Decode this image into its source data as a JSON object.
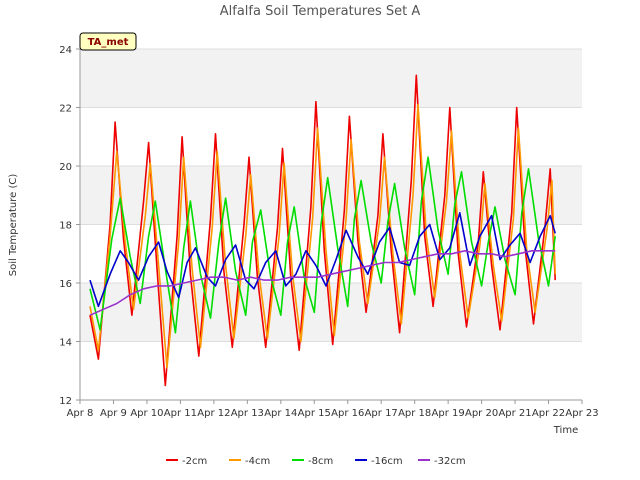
{
  "chart_data": {
    "type": "line",
    "title": "Alfalfa Soil Temperatures Set A",
    "xlabel": "Time",
    "ylabel": "Soil Temperature (C)",
    "badge": "TA_met",
    "xlim": [
      8,
      23
    ],
    "ylim": [
      12,
      24
    ],
    "yticks": [
      12,
      14,
      16,
      18,
      20,
      22,
      24
    ],
    "xticks": [
      {
        "x": 8,
        "label": "Apr 8"
      },
      {
        "x": 9,
        "label": "Apr 9"
      },
      {
        "x": 10,
        "label": "Apr 10"
      },
      {
        "x": 11,
        "label": "Apr 11"
      },
      {
        "x": 12,
        "label": "Apr 12"
      },
      {
        "x": 13,
        "label": "Apr 13"
      },
      {
        "x": 14,
        "label": "Apr 14"
      },
      {
        "x": 15,
        "label": "Apr 15"
      },
      {
        "x": 16,
        "label": "Apr 16"
      },
      {
        "x": 17,
        "label": "Apr 17"
      },
      {
        "x": 18,
        "label": "Apr 18"
      },
      {
        "x": 19,
        "label": "Apr 19"
      },
      {
        "x": 20,
        "label": "Apr 20"
      },
      {
        "x": 21,
        "label": "Apr 21"
      },
      {
        "x": 22,
        "label": "Apr 22"
      },
      {
        "x": 23,
        "label": "Apr 23"
      }
    ],
    "grid": true,
    "legend_position": "bottom",
    "series": [
      {
        "name": "-2cm",
        "color": "#ee0000",
        "x": [
          8.3,
          8.55,
          8.9,
          9.05,
          9.3,
          9.55,
          9.9,
          10.05,
          10.3,
          10.55,
          10.9,
          11.05,
          11.3,
          11.55,
          11.9,
          12.05,
          12.3,
          12.55,
          12.9,
          13.05,
          13.3,
          13.55,
          13.9,
          14.05,
          14.3,
          14.55,
          14.9,
          15.05,
          15.3,
          15.55,
          15.9,
          16.05,
          16.3,
          16.55,
          16.9,
          17.05,
          17.3,
          17.55,
          17.9,
          18.05,
          18.3,
          18.55,
          18.9,
          19.05,
          19.3,
          19.55,
          19.9,
          20.05,
          20.3,
          20.55,
          20.9,
          21.05,
          21.3,
          21.55,
          21.9,
          22.05,
          22.2
        ],
        "y": [
          14.9,
          13.4,
          18.0,
          21.5,
          17.5,
          14.9,
          18.8,
          20.8,
          16.5,
          12.5,
          17.6,
          21.0,
          16.3,
          13.5,
          18.2,
          21.1,
          16.4,
          13.8,
          18.0,
          20.3,
          16.2,
          13.8,
          17.9,
          20.6,
          16.2,
          13.7,
          18.6,
          22.2,
          17.1,
          13.9,
          18.5,
          21.7,
          17.5,
          15.0,
          18.3,
          21.1,
          17.1,
          14.3,
          19.5,
          23.1,
          17.6,
          15.2,
          19.0,
          22.0,
          17.0,
          14.5,
          17.4,
          19.8,
          16.6,
          14.4,
          18.4,
          22.0,
          17.2,
          14.6,
          18.0,
          19.9,
          16.1
        ]
      },
      {
        "name": "-4cm",
        "color": "#ff9900",
        "x": [
          8.3,
          8.55,
          8.9,
          9.1,
          9.35,
          9.6,
          9.95,
          10.1,
          10.35,
          10.6,
          10.95,
          11.1,
          11.35,
          11.6,
          11.95,
          12.1,
          12.35,
          12.6,
          12.95,
          13.1,
          13.35,
          13.6,
          13.95,
          14.1,
          14.35,
          14.6,
          14.95,
          15.1,
          15.35,
          15.6,
          15.95,
          16.1,
          16.35,
          16.6,
          16.95,
          17.1,
          17.35,
          17.6,
          17.95,
          18.1,
          18.35,
          18.6,
          18.95,
          19.1,
          19.35,
          19.6,
          19.95,
          20.1,
          20.35,
          20.6,
          20.95,
          21.1,
          21.35,
          21.6,
          21.95,
          22.1,
          22.2
        ],
        "y": [
          15.2,
          13.7,
          17.6,
          20.5,
          17.4,
          15.1,
          18.3,
          20.1,
          16.6,
          13.1,
          17.4,
          20.3,
          16.5,
          13.8,
          17.9,
          20.5,
          16.6,
          14.1,
          17.6,
          19.7,
          16.3,
          14.1,
          17.6,
          20.1,
          16.3,
          14.0,
          18.2,
          21.3,
          17.1,
          14.2,
          18.2,
          20.9,
          17.4,
          15.3,
          18.1,
          20.3,
          17.0,
          14.6,
          19.0,
          22.1,
          17.6,
          15.5,
          18.8,
          21.2,
          17.0,
          14.8,
          17.3,
          19.4,
          16.6,
          14.7,
          18.2,
          21.3,
          17.1,
          15.0,
          17.8,
          19.5,
          16.3
        ]
      },
      {
        "name": "-8cm",
        "color": "#00dd00",
        "x": [
          8.3,
          8.6,
          8.95,
          9.2,
          9.5,
          9.8,
          10.05,
          10.25,
          10.55,
          10.85,
          11.1,
          11.3,
          11.6,
          11.9,
          12.15,
          12.35,
          12.65,
          12.95,
          13.15,
          13.4,
          13.7,
          14.0,
          14.2,
          14.4,
          14.7,
          15.0,
          15.2,
          15.4,
          15.7,
          16.0,
          16.2,
          16.4,
          16.7,
          17.0,
          17.2,
          17.4,
          17.7,
          18.0,
          18.2,
          18.4,
          18.7,
          19.0,
          19.2,
          19.4,
          19.7,
          20.0,
          20.2,
          20.4,
          20.7,
          21.0,
          21.2,
          21.4,
          21.7,
          22.0,
          22.2
        ],
        "y": [
          15.8,
          14.4,
          17.5,
          18.9,
          16.9,
          15.3,
          17.6,
          18.8,
          16.5,
          14.3,
          17.2,
          18.8,
          16.3,
          14.8,
          17.4,
          18.9,
          16.4,
          14.9,
          17.4,
          18.5,
          16.2,
          14.9,
          17.4,
          18.6,
          16.2,
          15.0,
          18.0,
          19.6,
          17.2,
          15.2,
          18.2,
          19.5,
          17.4,
          16.0,
          18.1,
          19.4,
          17.2,
          15.6,
          18.8,
          20.3,
          17.8,
          16.3,
          18.7,
          19.8,
          17.4,
          15.9,
          17.4,
          18.6,
          16.8,
          15.6,
          18.4,
          19.9,
          17.5,
          15.9,
          17.6
        ]
      },
      {
        "name": "-16cm",
        "color": "#0000cc",
        "x": [
          8.3,
          8.55,
          8.9,
          9.2,
          9.45,
          9.75,
          10.05,
          10.35,
          10.6,
          10.95,
          11.2,
          11.45,
          11.8,
          12.05,
          12.35,
          12.65,
          12.95,
          13.2,
          13.55,
          13.85,
          14.15,
          14.45,
          14.75,
          15.05,
          15.35,
          15.65,
          15.95,
          16.3,
          16.6,
          16.95,
          17.25,
          17.55,
          17.85,
          18.15,
          18.45,
          18.75,
          19.05,
          19.35,
          19.65,
          19.95,
          20.3,
          20.55,
          20.85,
          21.15,
          21.45,
          21.75,
          22.05,
          22.2
        ],
        "y": [
          16.1,
          15.2,
          16.3,
          17.1,
          16.7,
          16.1,
          16.9,
          17.4,
          16.4,
          15.5,
          16.7,
          17.2,
          16.2,
          15.9,
          16.8,
          17.3,
          16.1,
          15.8,
          16.7,
          17.1,
          15.9,
          16.3,
          17.1,
          16.6,
          15.9,
          16.8,
          17.8,
          16.9,
          16.3,
          17.4,
          17.9,
          16.7,
          16.6,
          17.6,
          18.0,
          16.8,
          17.2,
          18.4,
          16.6,
          17.6,
          18.3,
          16.8,
          17.3,
          17.7,
          16.7,
          17.6,
          18.3,
          17.7
        ]
      },
      {
        "name": "-32cm",
        "color": "#9933cc",
        "x": [
          8.3,
          8.7,
          9.1,
          9.5,
          9.9,
          10.3,
          10.7,
          11.1,
          11.5,
          11.9,
          12.3,
          12.7,
          13.1,
          13.5,
          13.9,
          14.3,
          14.7,
          15.1,
          15.5,
          15.9,
          16.3,
          16.7,
          17.1,
          17.5,
          17.9,
          18.3,
          18.7,
          19.1,
          19.5,
          19.9,
          20.3,
          20.7,
          21.1,
          21.5,
          21.9,
          22.2
        ],
        "y": [
          14.9,
          15.1,
          15.3,
          15.6,
          15.8,
          15.9,
          15.9,
          16.0,
          16.1,
          16.2,
          16.2,
          16.1,
          16.2,
          16.1,
          16.1,
          16.2,
          16.2,
          16.2,
          16.3,
          16.4,
          16.5,
          16.6,
          16.7,
          16.7,
          16.8,
          16.9,
          17.0,
          17.0,
          17.1,
          17.0,
          17.0,
          16.9,
          17.0,
          17.1,
          17.1,
          17.1
        ]
      }
    ]
  }
}
